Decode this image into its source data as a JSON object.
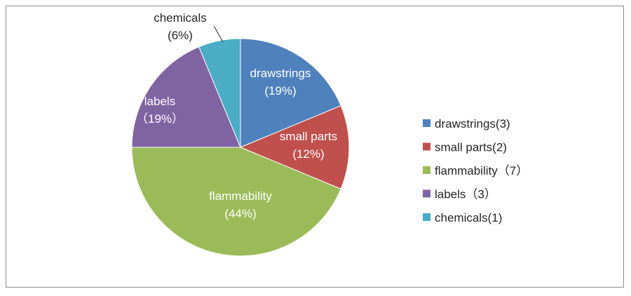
{
  "chart_data": {
    "type": "pie",
    "categories": [
      "drawstrings",
      "small parts",
      "flammability",
      "labels",
      "chemicals"
    ],
    "values": [
      3,
      2,
      7,
      3,
      1
    ],
    "percent_labels": [
      "(19%)",
      "(12%)",
      "(44%)",
      "（19%）",
      "(6%)"
    ],
    "legend_entries": [
      "drawstrings(3)",
      "small parts(2)",
      "flammability（7）",
      "labels（3）",
      "chemicals(1)"
    ],
    "colors": [
      "#4F81BD",
      "#C0504D",
      "#9BBB59",
      "#8064A2",
      "#4BACC6"
    ],
    "start_angle": "12 o'clock, clockwise",
    "legend_position": "right"
  }
}
